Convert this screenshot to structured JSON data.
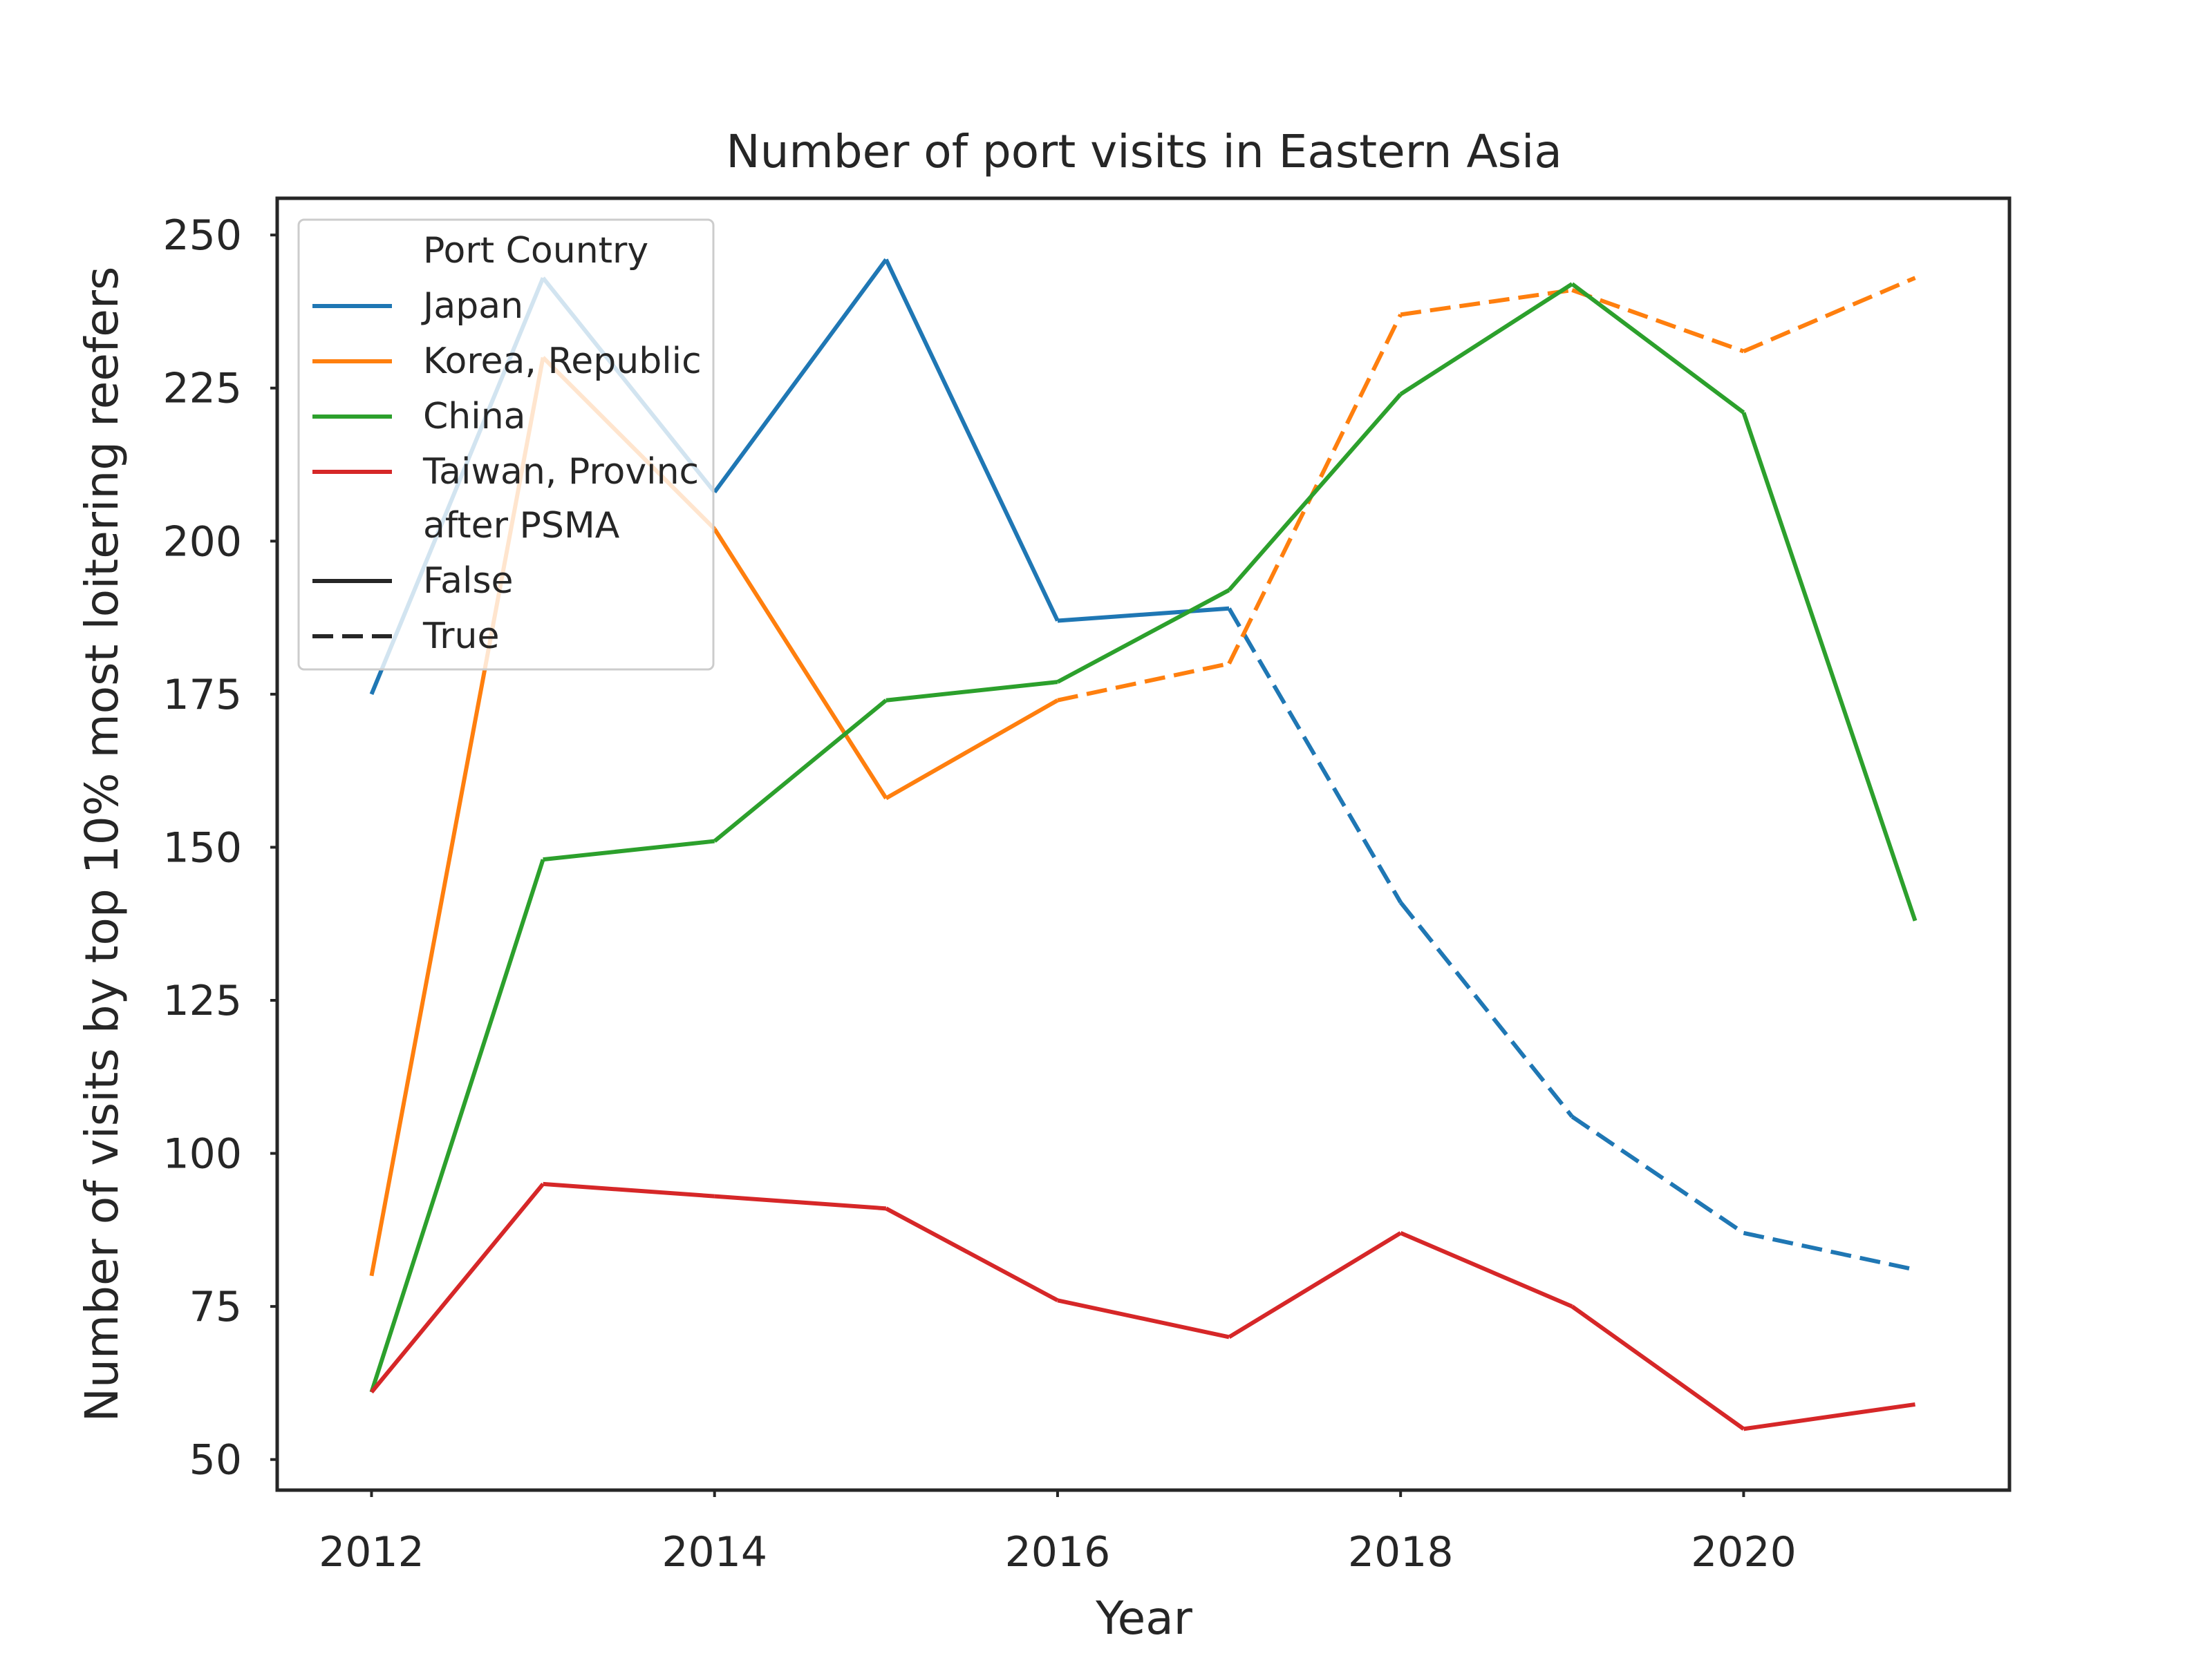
{
  "chart_data": {
    "type": "line",
    "title": "Number of port visits in Eastern Asia",
    "xlabel": "Year",
    "ylabel": "Number of visits by top 10% most loitering reefers",
    "xlim": [
      2011.45,
      2021.55
    ],
    "ylim": [
      45,
      256
    ],
    "x_ticks": [
      2012,
      2014,
      2016,
      2018,
      2020
    ],
    "y_ticks": [
      50,
      75,
      100,
      125,
      150,
      175,
      200,
      225,
      250
    ],
    "grid": false,
    "legend": {
      "placement": "top-left",
      "hue_title": "Port Country",
      "style_title": "after PSMA",
      "style_entries": [
        {
          "label": "False",
          "dash": "solid"
        },
        {
          "label": "True",
          "dash": "dashed"
        }
      ]
    },
    "series": [
      {
        "name": "Japan",
        "color": "#1f77b4",
        "x": [
          2012,
          2013,
          2014,
          2015,
          2016,
          2017,
          2018,
          2019,
          2020,
          2021
        ],
        "values": [
          175,
          243,
          208,
          246,
          187,
          189,
          141,
          106,
          87,
          81
        ],
        "after_psma": [
          false,
          false,
          false,
          false,
          false,
          true,
          true,
          true,
          true,
          true
        ]
      },
      {
        "name": "Korea, Republic",
        "color": "#ff7f0e",
        "x": [
          2012,
          2013,
          2014,
          2015,
          2016,
          2017,
          2018,
          2019,
          2020,
          2021
        ],
        "values": [
          80,
          230,
          202,
          158,
          174,
          180,
          237,
          241,
          231,
          243
        ],
        "after_psma": [
          false,
          false,
          false,
          false,
          true,
          true,
          true,
          true,
          true,
          true
        ]
      },
      {
        "name": "China",
        "color": "#2ca02c",
        "x": [
          2012,
          2013,
          2014,
          2015,
          2016,
          2017,
          2018,
          2019,
          2020,
          2021
        ],
        "values": [
          61,
          148,
          151,
          174,
          177,
          192,
          224,
          242,
          221,
          138
        ],
        "after_psma": [
          false,
          false,
          false,
          false,
          false,
          false,
          false,
          false,
          false,
          false
        ]
      },
      {
        "name": "Taiwan, Provinc",
        "color": "#d62728",
        "x": [
          2012,
          2013,
          2014,
          2015,
          2016,
          2017,
          2018,
          2019,
          2020,
          2021
        ],
        "values": [
          61,
          95,
          93,
          91,
          76,
          70,
          87,
          75,
          55,
          59
        ],
        "after_psma": [
          false,
          false,
          false,
          false,
          false,
          false,
          false,
          false,
          false,
          false
        ]
      }
    ]
  }
}
